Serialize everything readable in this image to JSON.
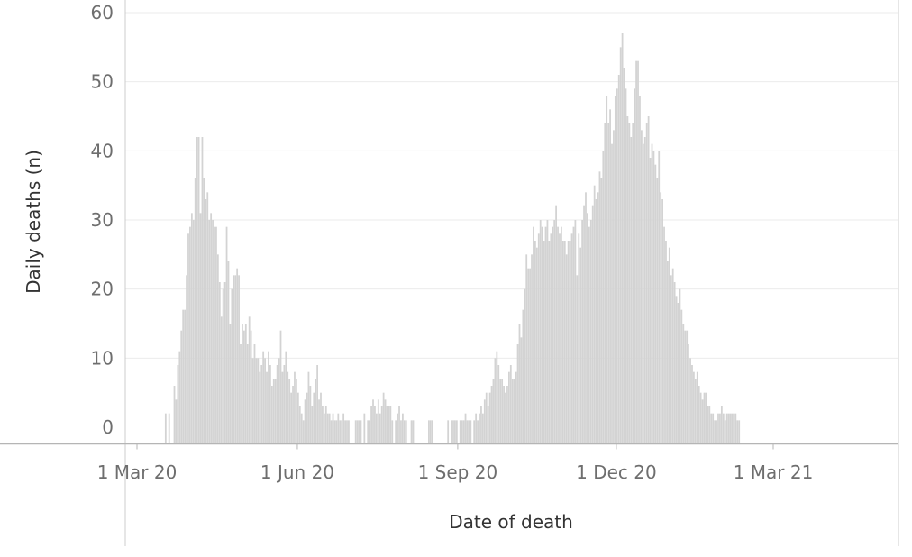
{
  "chart_data": {
    "type": "bar",
    "xlabel": "Date of death",
    "ylabel": "Daily deaths (n)",
    "ylim": [
      0,
      60
    ],
    "y_ticks": [
      0,
      10,
      20,
      30,
      40,
      50,
      60
    ],
    "x_ticks": [
      {
        "date": "2020-03-01",
        "label": "1 Mar 20"
      },
      {
        "date": "2020-06-01",
        "label": "1 Jun 20"
      },
      {
        "date": "2020-09-01",
        "label": "1 Sep 20"
      },
      {
        "date": "2020-12-01",
        "label": "1 Dec 20"
      },
      {
        "date": "2021-03-01",
        "label": "1 Mar 21"
      }
    ],
    "x_start": "2020-03-17",
    "grid": true,
    "bar_color": "#d3d3d3",
    "values": [
      2,
      0,
      2,
      0,
      0,
      6,
      4,
      9,
      11,
      14,
      17,
      17,
      22,
      28,
      29,
      31,
      30,
      36,
      42,
      42,
      31,
      42,
      36,
      33,
      34,
      30,
      31,
      30,
      29,
      29,
      25,
      21,
      16,
      20,
      21,
      29,
      24,
      15,
      20,
      22,
      22,
      23,
      22,
      12,
      15,
      14,
      15,
      12,
      16,
      14,
      10,
      12,
      10,
      10,
      8,
      9,
      11,
      10,
      8,
      11,
      9,
      6,
      7,
      7,
      9,
      10,
      14,
      8,
      9,
      11,
      8,
      7,
      5,
      6,
      8,
      7,
      5,
      3,
      2,
      1,
      4,
      5,
      8,
      6,
      3,
      5,
      7,
      9,
      4,
      5,
      3,
      2,
      3,
      2,
      2,
      1,
      2,
      1,
      1,
      2,
      1,
      1,
      2,
      1,
      1,
      1,
      0,
      0,
      0,
      1,
      1,
      1,
      1,
      0,
      2,
      0,
      1,
      1,
      3,
      4,
      3,
      2,
      4,
      2,
      3,
      5,
      4,
      3,
      3,
      3,
      1,
      0,
      1,
      2,
      3,
      1,
      2,
      1,
      1,
      0,
      0,
      1,
      1,
      0,
      0,
      0,
      0,
      0,
      0,
      0,
      0,
      1,
      1,
      1,
      0,
      0,
      0,
      0,
      0,
      0,
      0,
      0,
      1,
      0,
      1,
      1,
      1,
      1,
      0,
      1,
      1,
      1,
      2,
      1,
      1,
      1,
      0,
      1,
      2,
      1,
      2,
      3,
      2,
      4,
      5,
      3,
      5,
      6,
      7,
      10,
      11,
      9,
      7,
      7,
      6,
      5,
      6,
      8,
      9,
      7,
      7,
      8,
      12,
      15,
      13,
      17,
      20,
      25,
      23,
      23,
      25,
      29,
      27,
      26,
      28,
      30,
      29,
      27,
      29,
      30,
      27,
      28,
      29,
      30,
      32,
      29,
      28,
      29,
      27,
      27,
      25,
      27,
      27,
      28,
      29,
      30,
      22,
      28,
      26,
      30,
      32,
      34,
      31,
      29,
      30,
      32,
      35,
      33,
      34,
      37,
      36,
      40,
      44,
      48,
      44,
      46,
      41,
      43,
      48,
      49,
      51,
      55,
      57,
      52,
      49,
      45,
      44,
      42,
      44,
      49,
      53,
      53,
      48,
      43,
      41,
      42,
      44,
      45,
      39,
      41,
      40,
      38,
      36,
      40,
      34,
      33,
      29,
      27,
      24,
      26,
      22,
      23,
      21,
      19,
      18,
      20,
      17,
      15,
      14,
      14,
      12,
      10,
      9,
      8,
      7,
      8,
      6,
      5,
      4,
      5,
      5,
      3,
      3,
      2,
      2,
      1,
      1,
      2,
      2,
      3,
      2,
      1,
      2,
      2,
      2,
      2,
      2,
      2,
      1,
      1
    ]
  }
}
